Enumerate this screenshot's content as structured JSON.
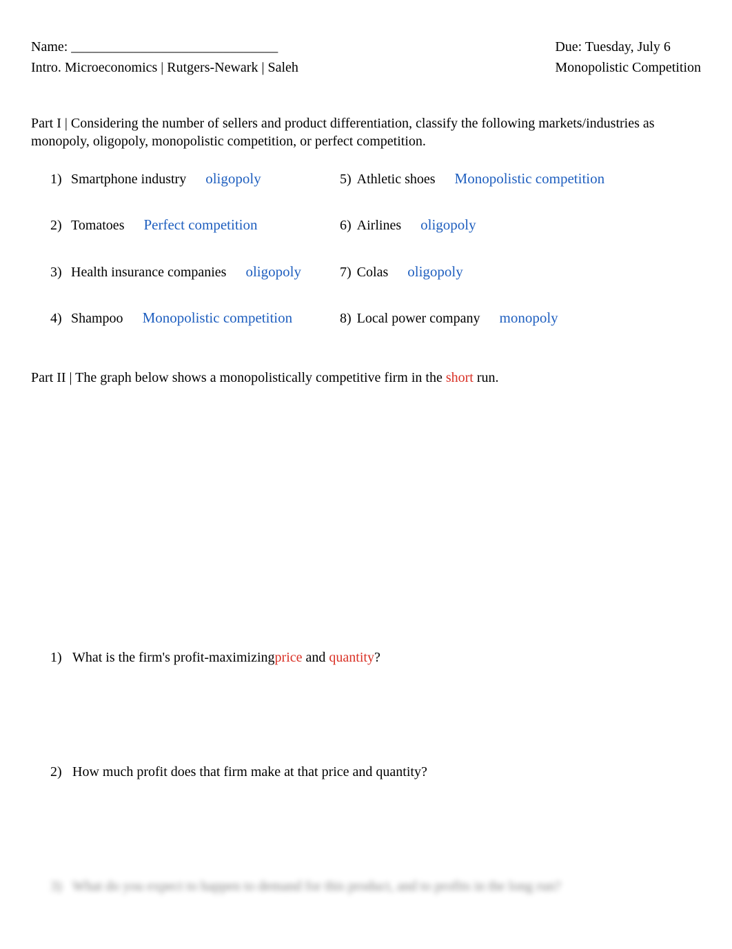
{
  "colors": {
    "text_black": "#000000",
    "answer_blue": "#1f5fbf",
    "highlight_red": "#d93025",
    "background": "#ffffff"
  },
  "typography": {
    "font_family": "Times New Roman",
    "base_fontsize": 20,
    "answer_fontsize": 21
  },
  "header": {
    "name_label": "Name: ______________________________",
    "course_line": "Intro. Microeconomics | Rutgers-Newark | Saleh",
    "due_label": "Due: Tuesday, July 6",
    "topic_label": "Monopolistic Competition"
  },
  "part1": {
    "intro": "Part I | Considering the number of sellers and product differentiation, classify the following markets/industries as monopoly, oligopoly, monopolistic competition, or perfect competition.",
    "rows": [
      {
        "left_num": "1)",
        "left_label": "Smartphone industry",
        "left_answer": "oligopoly",
        "right_num": "5)",
        "right_label": "Athletic shoes",
        "right_answer": "Monopolistic competition"
      },
      {
        "left_num": "2)",
        "left_label": "Tomatoes",
        "left_answer": "Perfect competition",
        "right_num": "6)",
        "right_label": "Airlines",
        "right_answer": "oligopoly"
      },
      {
        "left_num": "3)",
        "left_label": "Health insurance companies",
        "left_answer": "oligopoly",
        "right_num": "7)",
        "right_label": "Colas",
        "right_answer": "oligopoly"
      },
      {
        "left_num": "4)",
        "left_label": "Shampoo",
        "left_answer": "Monopolistic competition",
        "right_num": "8)",
        "right_label": "Local power company",
        "right_answer": "monopoly"
      }
    ]
  },
  "part2": {
    "intro_prefix": "Part II | The graph below shows a monopolistically competitive firm in the",
    "intro_highlight": "short",
    "intro_suffix": "run.",
    "questions": [
      {
        "num": "1)",
        "text_prefix": "What is the firm's profit-maximizing",
        "red1": "price",
        "mid": " and ",
        "red2": "quantity",
        "suffix": "?"
      },
      {
        "num": "2)",
        "text": "How much profit does that firm make at that price and quantity?"
      }
    ],
    "blurred_question": {
      "num": "3)",
      "text_prefix": "What do you expect to happen to demand for this product, and to profits in the",
      "highlight": "long run",
      "suffix": "?"
    }
  }
}
